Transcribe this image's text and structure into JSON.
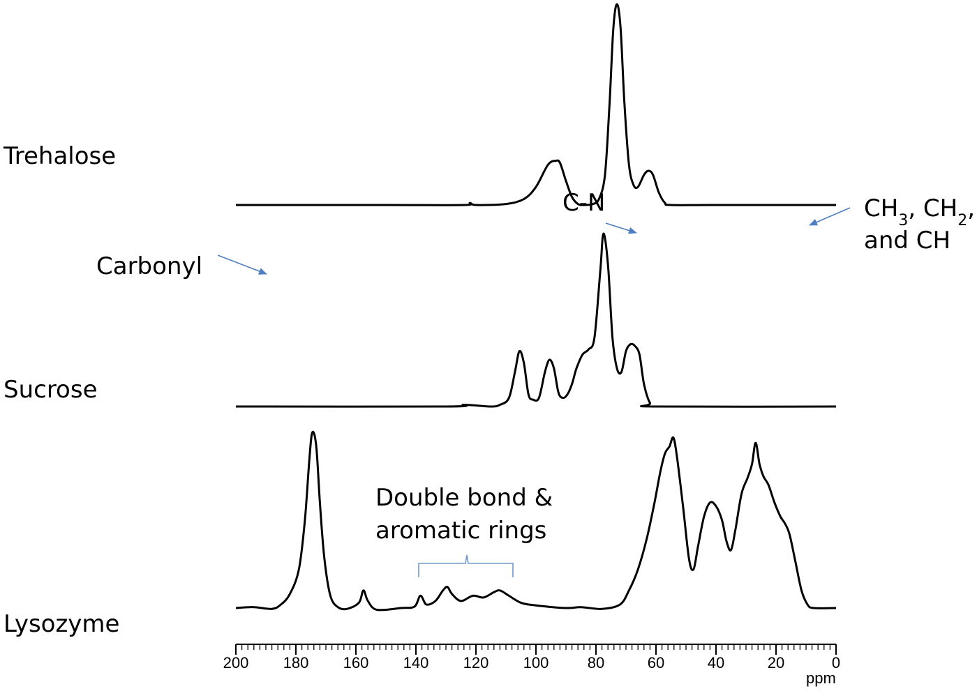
{
  "chart_data": {
    "type": "line",
    "xlabel": "ppm",
    "xlim": [
      200,
      0
    ],
    "x_reversed": true,
    "x_ticks": [
      200,
      180,
      160,
      140,
      120,
      100,
      80,
      60,
      40,
      20,
      0
    ],
    "x_minor_tick_step": 2,
    "y_axis_shown": false,
    "grid": false,
    "legend": "none",
    "line_color": "#000000",
    "annotation_color": "#4f7fc0",
    "series": [
      {
        "name": "Trehalose",
        "baseline": 0,
        "points": [
          [
            200,
            0
          ],
          [
            150,
            0
          ],
          [
            124,
            0
          ],
          [
            122,
            0.01
          ],
          [
            120,
            0
          ],
          [
            110,
            0.005
          ],
          [
            104,
            0.03
          ],
          [
            100,
            0.09
          ],
          [
            96,
            0.2
          ],
          [
            93.5,
            0.22
          ],
          [
            92,
            0.21
          ],
          [
            90,
            0.12
          ],
          [
            88,
            0.04
          ],
          [
            86,
            0.005
          ],
          [
            84,
            0
          ],
          [
            81,
            0.005
          ],
          [
            79,
            0.03
          ],
          [
            77,
            0.15
          ],
          [
            75.5,
            0.5
          ],
          [
            74.2,
            0.88
          ],
          [
            73,
            1.0
          ],
          [
            71.8,
            0.88
          ],
          [
            70.5,
            0.5
          ],
          [
            69,
            0.2
          ],
          [
            67.5,
            0.1
          ],
          [
            66,
            0.09
          ],
          [
            64,
            0.15
          ],
          [
            62.5,
            0.17
          ],
          [
            61,
            0.15
          ],
          [
            59,
            0.06
          ],
          [
            57,
            0.01
          ],
          [
            55,
            0
          ],
          [
            40,
            0
          ],
          [
            0,
            0
          ]
        ]
      },
      {
        "name": "Sucrose",
        "baseline": 0,
        "points": [
          [
            200,
            0
          ],
          [
            130,
            0
          ],
          [
            124,
            0.01
          ],
          [
            115,
            0
          ],
          [
            112,
            0.01
          ],
          [
            109,
            0.05
          ],
          [
            107,
            0.2
          ],
          [
            105.5,
            0.32
          ],
          [
            104,
            0.25
          ],
          [
            102.5,
            0.07
          ],
          [
            101,
            0.04
          ],
          [
            99,
            0.05
          ],
          [
            97,
            0.2
          ],
          [
            95.5,
            0.27
          ],
          [
            94,
            0.22
          ],
          [
            92.5,
            0.08
          ],
          [
            91,
            0.05
          ],
          [
            89.5,
            0.07
          ],
          [
            88,
            0.13
          ],
          [
            86.5,
            0.22
          ],
          [
            84.5,
            0.3
          ],
          [
            82.5,
            0.33
          ],
          [
            80.5,
            0.4
          ],
          [
            78.5,
            0.8
          ],
          [
            77.5,
            1.0
          ],
          [
            76,
            0.82
          ],
          [
            74.5,
            0.4
          ],
          [
            73,
            0.22
          ],
          [
            71.5,
            0.2
          ],
          [
            70,
            0.32
          ],
          [
            68.5,
            0.36
          ],
          [
            67,
            0.35
          ],
          [
            65.5,
            0.3
          ],
          [
            64,
            0.13
          ],
          [
            62,
            0.02
          ],
          [
            60,
            0
          ],
          [
            0,
            0
          ]
        ]
      },
      {
        "name": "Lysozyme",
        "baseline": 0,
        "points": [
          [
            200,
            0
          ],
          [
            194,
            0.005
          ],
          [
            188,
            -0.005
          ],
          [
            185,
            0.02
          ],
          [
            182,
            0.08
          ],
          [
            179,
            0.22
          ],
          [
            177,
            0.5
          ],
          [
            175.5,
            0.85
          ],
          [
            174.5,
            1.0
          ],
          [
            173.2,
            0.92
          ],
          [
            172,
            0.6
          ],
          [
            170.5,
            0.28
          ],
          [
            168.5,
            0.07
          ],
          [
            166,
            0.005
          ],
          [
            163,
            -0.005
          ],
          [
            159,
            0.03
          ],
          [
            157.5,
            0.1
          ],
          [
            156,
            0.04
          ],
          [
            153,
            -0.01
          ],
          [
            145,
            0
          ],
          [
            140.5,
            0.008
          ],
          [
            138.5,
            0.07
          ],
          [
            136.5,
            0.02
          ],
          [
            133.5,
            0.04
          ],
          [
            131,
            0.1
          ],
          [
            129.5,
            0.12
          ],
          [
            128,
            0.08
          ],
          [
            125,
            0.04
          ],
          [
            121,
            0.07
          ],
          [
            117.5,
            0.06
          ],
          [
            114,
            0.09
          ],
          [
            112,
            0.1
          ],
          [
            109,
            0.07
          ],
          [
            105,
            0.03
          ],
          [
            100,
            0.015
          ],
          [
            90,
            0
          ],
          [
            85,
            0.005
          ],
          [
            78,
            -0.005
          ],
          [
            72,
            0.02
          ],
          [
            69,
            0.1
          ],
          [
            66,
            0.22
          ],
          [
            63,
            0.4
          ],
          [
            60.5,
            0.6
          ],
          [
            58.5,
            0.78
          ],
          [
            57,
            0.88
          ],
          [
            55.5,
            0.92
          ],
          [
            54.2,
            0.97
          ],
          [
            53,
            0.86
          ],
          [
            51,
            0.58
          ],
          [
            49,
            0.28
          ],
          [
            47.5,
            0.22
          ],
          [
            46,
            0.35
          ],
          [
            44,
            0.52
          ],
          [
            42,
            0.6
          ],
          [
            40,
            0.58
          ],
          [
            38,
            0.5
          ],
          [
            36.5,
            0.38
          ],
          [
            35,
            0.33
          ],
          [
            33.5,
            0.45
          ],
          [
            31.5,
            0.65
          ],
          [
            29.5,
            0.74
          ],
          [
            28,
            0.82
          ],
          [
            26.8,
            0.94
          ],
          [
            25.5,
            0.82
          ],
          [
            24.2,
            0.75
          ],
          [
            22.5,
            0.7
          ],
          [
            20.5,
            0.6
          ],
          [
            18.5,
            0.52
          ],
          [
            17,
            0.48
          ],
          [
            15.5,
            0.42
          ],
          [
            13.5,
            0.26
          ],
          [
            11.5,
            0.1
          ],
          [
            9.5,
            0.02
          ],
          [
            7.5,
            0
          ],
          [
            0,
            0
          ]
        ]
      }
    ],
    "annotations": [
      "Carbonyl",
      "Double bond &",
      "aromatic rings",
      "C-N",
      "CH3, CH2,",
      "and CH"
    ]
  },
  "labels": {
    "trehalose": "Trehalose",
    "sucrose": "Sucrose",
    "lysozyme": "Lysozyme",
    "carbonyl": "Carbonyl",
    "double_bond_line1": "Double bond &",
    "double_bond_line2": "aromatic rings",
    "cn": "C-N",
    "ch_part1": "CH",
    "ch_sub1": "3",
    "ch_part2": ", CH",
    "ch_sub2": "2",
    "ch_part3": ",",
    "ch_line2": "and CH"
  }
}
